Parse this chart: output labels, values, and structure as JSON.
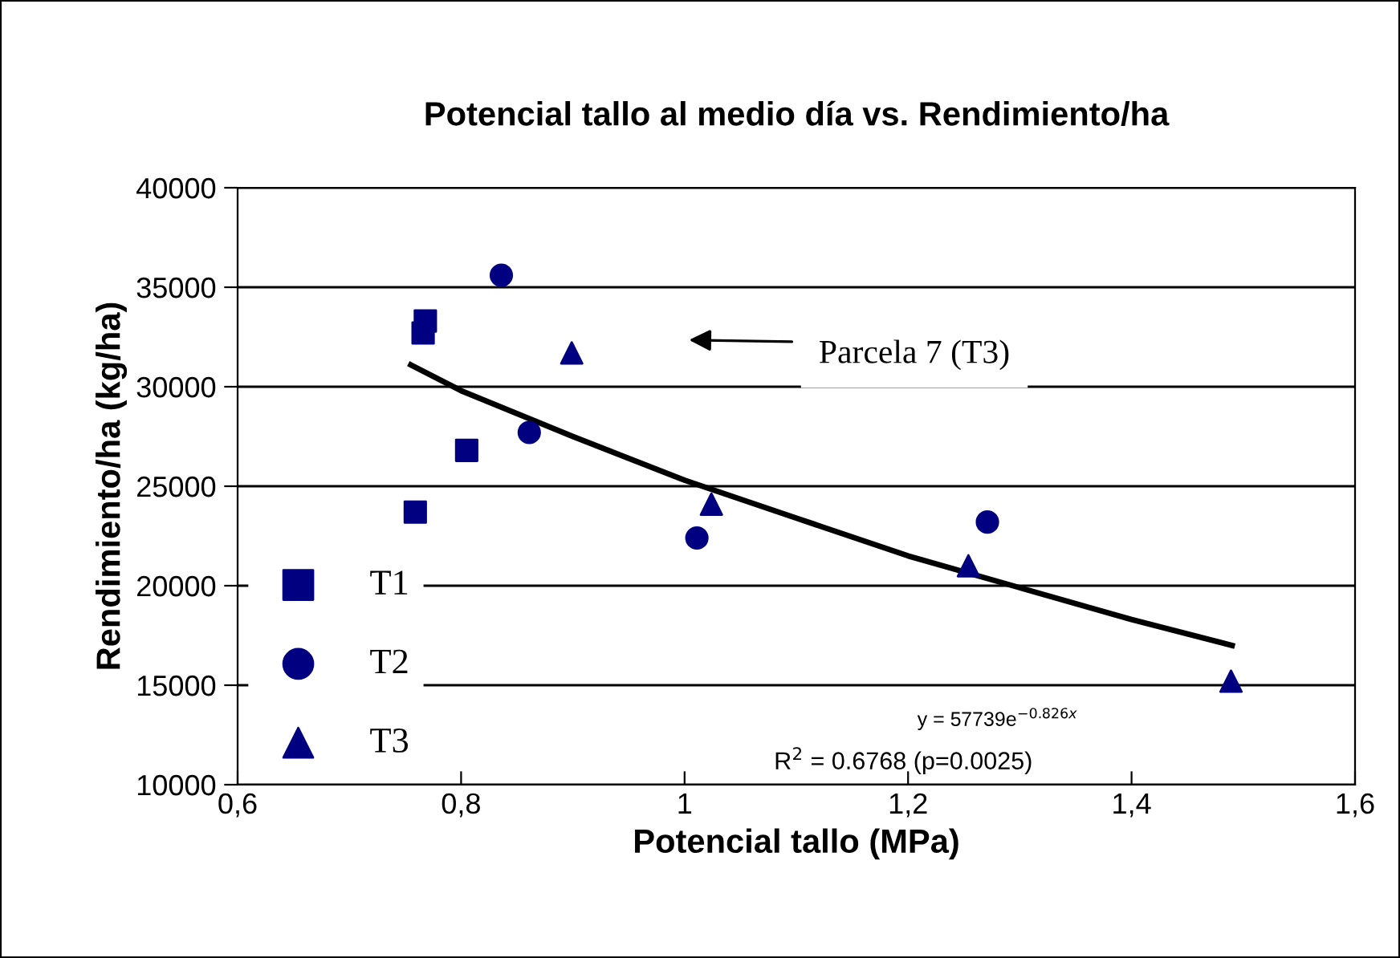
{
  "chart_data": {
    "type": "scatter",
    "title": "Potencial tallo al medio día vs. Rendimiento/ha",
    "xlabel": "Potencial tallo (MPa)",
    "ylabel": "Rendimiento/ha (kg/ha)",
    "series": [
      {
        "name": "T1",
        "color": "#000080",
        "marker": "square",
        "x": [
          0.768,
          0.766,
          0.805,
          0.759
        ],
        "values": [
          33300,
          32700,
          26800,
          23700
        ]
      },
      {
        "name": "T2",
        "color": "#000080",
        "marker": "circle",
        "x": [
          0.836,
          0.861,
          1.011,
          1.271
        ],
        "values": [
          35600,
          27700,
          22400,
          23200
        ]
      },
      {
        "name": "T3",
        "color": "#000080",
        "marker": "triangle",
        "x": [
          0.899,
          1.024,
          1.254,
          1.489
        ],
        "values": [
          31700,
          24100,
          21000,
          15200
        ]
      },
      {
        "type": "line",
        "color": "#000000",
        "marker": "none",
        "x": [
          0.755,
          0.8,
          0.9,
          1.0,
          1.1,
          1.2,
          1.3,
          1.4,
          1.49
        ],
        "values": [
          31100,
          29800,
          27500,
          25300,
          23400,
          21500,
          19900,
          18300,
          17000
        ]
      }
    ],
    "annotations": [
      "Parcela 7 (T3)",
      "y = 57739e$^{−0.826x}$",
      "R$^{2}$ = 0.6768 (p=0.0025)"
    ],
    "xlim": [
      0.6,
      1.6
    ],
    "xticks": [
      {
        "value": 0.6,
        "label": "0,6"
      },
      {
        "value": 0.8,
        "label": "0,8"
      },
      {
        "value": 1.0,
        "label": "1"
      },
      {
        "value": 1.2,
        "label": "1,2"
      },
      {
        "value": 1.4,
        "label": "1,4"
      },
      {
        "value": 1.6,
        "label": "1,6"
      }
    ],
    "ylim": [
      10000,
      40000
    ],
    "yticks": [
      10000,
      15000,
      20000,
      25000,
      30000,
      35000,
      40000
    ],
    "grid": "y",
    "legend": "bottom left"
  }
}
